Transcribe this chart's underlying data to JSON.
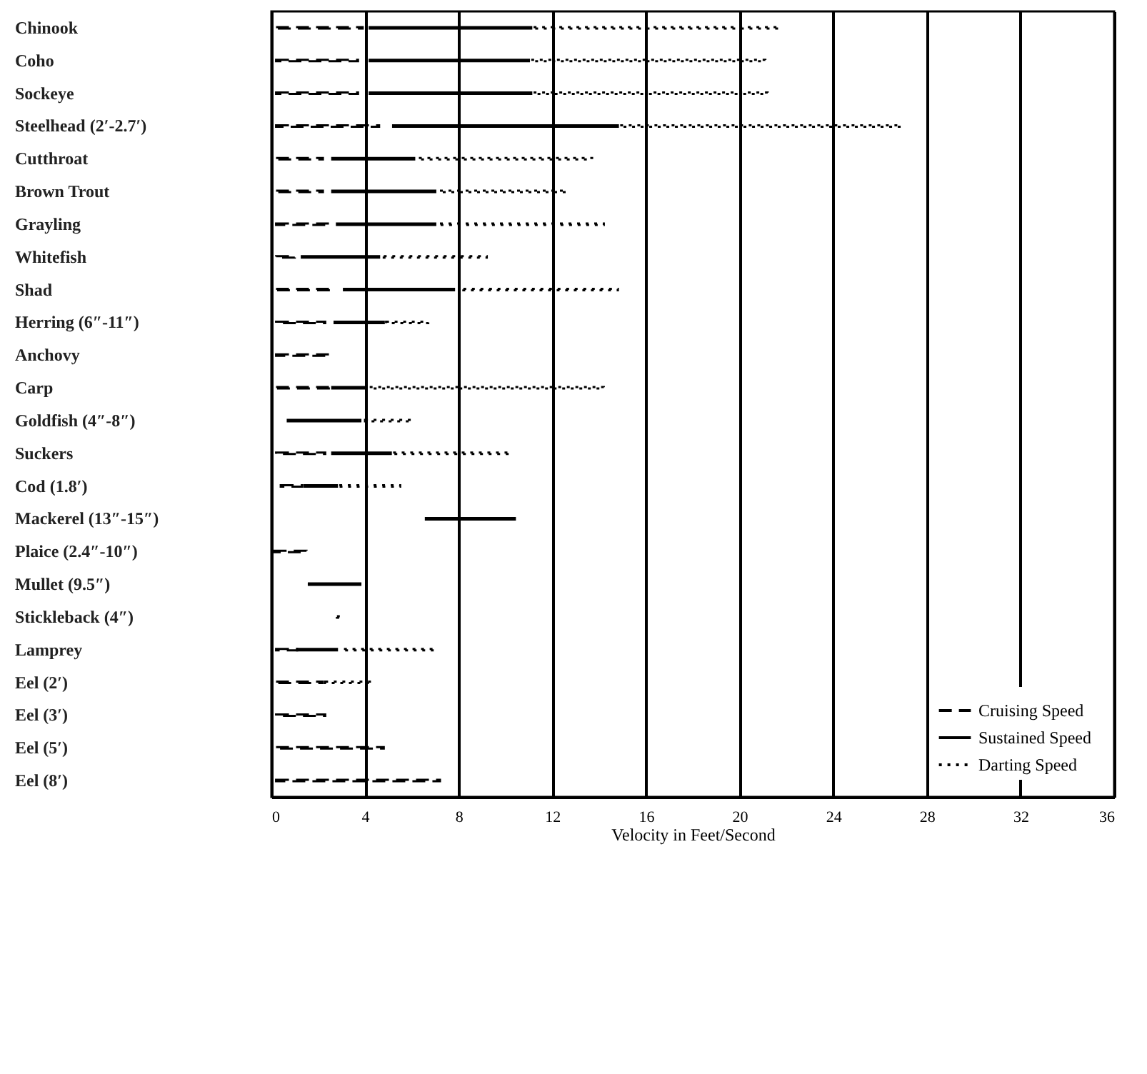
{
  "chart_data": {
    "type": "bar",
    "orientation": "horizontal",
    "xlabel": "Velocity in Feet/Second",
    "categories": [
      "Chinook",
      "Coho",
      "Sockeye",
      "Steelhead (2′-2.7′)",
      "Cutthroat",
      "Brown Trout",
      "Grayling",
      "Whitefish",
      "Shad",
      "Herring (6″-11″)",
      "Anchovy",
      "Carp",
      "Goldfish (4″-8″)",
      "Suckers",
      "Cod (1.8′)",
      "Mackerel (13″-15″)",
      "Plaice (2.4″-10″)",
      "Mullet (9.5″)",
      "Stickleback (4″)",
      "Lamprey",
      "Eel (2′)",
      "Eel (3′)",
      "Eel (5′)",
      "Eel (8′)"
    ],
    "series": [
      {
        "name": "Cruising Speed",
        "color": "#000000",
        "line_style": "dashed",
        "base": [
          0.2,
          0.2,
          0.2,
          0.2,
          0.2,
          0.2,
          0.2,
          0.2,
          0.2,
          0.2,
          0.2,
          0.2,
          null,
          0.2,
          0.4,
          null,
          0.1,
          null,
          null,
          0.2,
          0.2,
          0.2,
          0.2,
          0.2
        ],
        "values": [
          3.7,
          3.5,
          3.5,
          4.4,
          2.0,
          2.0,
          2.3,
          0.8,
          2.4,
          2.1,
          2.3,
          2.4,
          null,
          2.1,
          0.9,
          null,
          1.4,
          null,
          null,
          0.9,
          2.0,
          2.1,
          4.6,
          7.0
        ]
      },
      {
        "name": "Sustained Speed",
        "color": "#000000",
        "line_style": "solid",
        "base": [
          4.2,
          4.2,
          4.2,
          5.2,
          2.6,
          2.6,
          2.8,
          1.3,
          3.1,
          2.7,
          null,
          2.6,
          0.7,
          2.6,
          1.4,
          6.6,
          null,
          1.6,
          null,
          1.1,
          null,
          null,
          null,
          null
        ],
        "values": [
          6.9,
          6.8,
          6.9,
          9.6,
          3.5,
          4.4,
          4.2,
          3.3,
          4.7,
          2.1,
          null,
          1.4,
          3.1,
          2.5,
          1.4,
          3.8,
          null,
          2.2,
          null,
          1.7,
          null,
          null,
          null,
          null
        ]
      },
      {
        "name": "Darting Speed",
        "color": "#000000",
        "line_style": "dotted",
        "base": [
          11.2,
          11.1,
          11.2,
          14.9,
          6.3,
          7.2,
          7.2,
          4.8,
          8.2,
          4.9,
          null,
          4.2,
          4.0,
          5.2,
          2.9,
          null,
          null,
          null,
          2.8,
          3.1,
          2.3,
          null,
          null,
          null
        ],
        "values": [
          10.5,
          10.0,
          10.0,
          12.0,
          7.4,
          5.4,
          7.0,
          4.4,
          6.6,
          1.8,
          null,
          10.0,
          2.0,
          5.0,
          2.6,
          null,
          null,
          null,
          0.2,
          3.9,
          2.0,
          null,
          null,
          null
        ]
      }
    ],
    "xlim": [
      0,
      36
    ],
    "xticks": [
      0,
      4,
      8,
      12,
      16,
      20,
      24,
      28,
      32,
      36
    ],
    "grid": "x",
    "legend": "bottom right"
  }
}
